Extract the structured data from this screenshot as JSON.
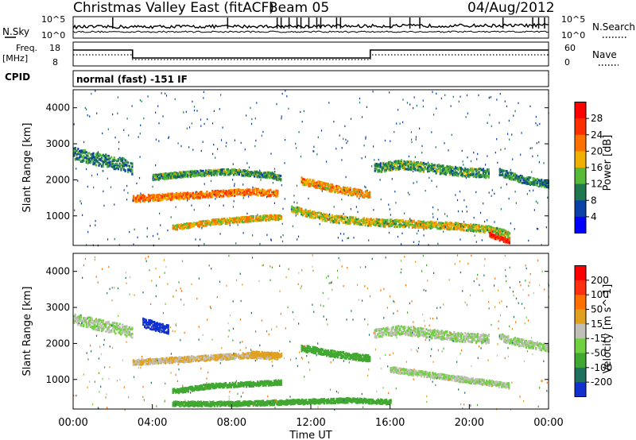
{
  "header": {
    "title": "Christmas Valley East (fitACF)",
    "beam": "Beam 05",
    "date": "04/Aug/2012"
  },
  "top_panels": {
    "nsky_label": "N.Sky",
    "nsearch_label": "N.Search",
    "noise_ticks": [
      "10^5",
      "10^0"
    ],
    "freq_label": "Freq.",
    "freq_unit": "[MHz]",
    "freq_ticks": [
      "18",
      "8"
    ],
    "nave_label": "Nave",
    "nave_ticks": [
      "60",
      "0"
    ],
    "cpid_label": "CPID",
    "cpid_value": "normal (fast) -151 IF"
  },
  "chart_data": [
    {
      "type": "heatmap",
      "name": "power",
      "xlabel": "Time UT",
      "ylabel": "Slant Range [km]",
      "xlim": [
        0,
        24
      ],
      "ylim": [
        180,
        4500
      ],
      "yticks": [
        1000,
        2000,
        3000,
        4000
      ],
      "colorbar": {
        "label": "Power [dB]",
        "ticks": [
          "4",
          "8",
          "12",
          "16",
          "20",
          "24",
          "28"
        ],
        "colors": [
          "#0000ff",
          "#0a40a8",
          "#20784e",
          "#58b838",
          "#f0b000",
          "#ff7000",
          "#ff3000",
          "#ff0000"
        ]
      },
      "bands": [
        {
          "t": [
            0,
            1.2,
            2.5,
            3.0
          ],
          "r": [
            2750,
            2600,
            2450,
            2300
          ],
          "w": 350,
          "level": 10
        },
        {
          "t": [
            3.0,
            4.5,
            6.0,
            7.5,
            9.0,
            10.3
          ],
          "r": [
            1500,
            1550,
            1600,
            1650,
            1700,
            1650
          ],
          "w": 180,
          "level": 22
        },
        {
          "t": [
            4.0,
            6.0,
            8.0,
            10.0,
            10.5
          ],
          "r": [
            2100,
            2200,
            2250,
            2150,
            2050
          ],
          "w": 160,
          "level": 12
        },
        {
          "t": [
            5.0,
            7.0,
            9.0,
            10.5
          ],
          "r": [
            700,
            850,
            950,
            1000
          ],
          "w": 150,
          "level": 18
        },
        {
          "t": [
            11.5,
            13.0,
            14.5,
            15.0
          ],
          "r": [
            2000,
            1800,
            1650,
            1600
          ],
          "w": 200,
          "level": 20
        },
        {
          "t": [
            11.0,
            13.0,
            15.0,
            17.0,
            19.0,
            21.0,
            22.0
          ],
          "r": [
            1200,
            950,
            850,
            800,
            750,
            650,
            500
          ],
          "w": 200,
          "level": 16
        },
        {
          "t": [
            15.2,
            16.5,
            18.0,
            19.5,
            21.0
          ],
          "r": [
            2350,
            2450,
            2350,
            2250,
            2200
          ],
          "w": 250,
          "level": 12
        },
        {
          "t": [
            21.5,
            22.5,
            23.5,
            24.0
          ],
          "r": [
            2250,
            2050,
            1950,
            1900
          ],
          "w": 200,
          "level": 10
        },
        {
          "t": [
            21.0,
            21.5,
            22.0
          ],
          "r": [
            500,
            400,
            300
          ],
          "w": 120,
          "level": 28
        }
      ]
    },
    {
      "type": "heatmap",
      "name": "velocity",
      "xlabel": "Time UT",
      "ylabel": "Slant Range [km]",
      "xlim": [
        0,
        24
      ],
      "ylim": [
        180,
        4500
      ],
      "yticks": [
        1000,
        2000,
        3000,
        4000
      ],
      "xticks": [
        "00:00",
        "04:00",
        "08:00",
        "12:00",
        "16:00",
        "20:00",
        "00:00"
      ],
      "colorbar": {
        "label": "Velocity [m s^-1]",
        "ticks": [
          "200",
          "100",
          "50",
          "15",
          "-15",
          "-50",
          "-100",
          "-200"
        ],
        "colors": [
          "#1030d0",
          "#207060",
          "#40a830",
          "#70d040",
          "#c0c0b8",
          "#e0a020",
          "#ff7000",
          "#ff3010",
          "#ff0000"
        ]
      },
      "bands": [
        {
          "t": [
            0,
            1.2,
            2.5,
            3.0
          ],
          "r": [
            2700,
            2550,
            2400,
            2300
          ],
          "w": 300,
          "level": 0
        },
        {
          "t": [
            3.0,
            4.5,
            6.0,
            7.5,
            9.0,
            10.3
          ],
          "r": [
            1500,
            1550,
            1600,
            1650,
            1700,
            1650
          ],
          "w": 150,
          "level": -30
        },
        {
          "t": [
            3.5,
            4.2,
            4.8
          ],
          "r": [
            2600,
            2500,
            2400
          ],
          "w": 250,
          "level": 200
        },
        {
          "t": [
            5.0,
            7.0,
            9.0,
            10.5
          ],
          "r": [
            700,
            850,
            900,
            950
          ],
          "w": 130,
          "level": 60
        },
        {
          "t": [
            5.0,
            8.0,
            11.0,
            14.0,
            16.0
          ],
          "r": [
            350,
            350,
            400,
            450,
            400
          ],
          "w": 130,
          "level": 60
        },
        {
          "t": [
            11.5,
            13.0,
            15.0
          ],
          "r": [
            1900,
            1750,
            1600
          ],
          "w": 180,
          "level": 60
        },
        {
          "t": [
            15.2,
            16.5,
            18.0,
            19.5,
            21.0
          ],
          "r": [
            2300,
            2400,
            2300,
            2200,
            2150
          ],
          "w": 250,
          "level": 0
        },
        {
          "t": [
            16.0,
            18.0,
            20.0,
            22.0
          ],
          "r": [
            1300,
            1150,
            1000,
            850
          ],
          "w": 150,
          "level": 0
        },
        {
          "t": [
            21.5,
            22.5,
            23.5,
            24.0
          ],
          "r": [
            2200,
            2050,
            1950,
            1900
          ],
          "w": 200,
          "level": 0
        },
        {
          "t": [
            9.0,
            10.5
          ],
          "r": [
            1750,
            1700
          ],
          "w": 120,
          "level": -60
        }
      ]
    }
  ]
}
